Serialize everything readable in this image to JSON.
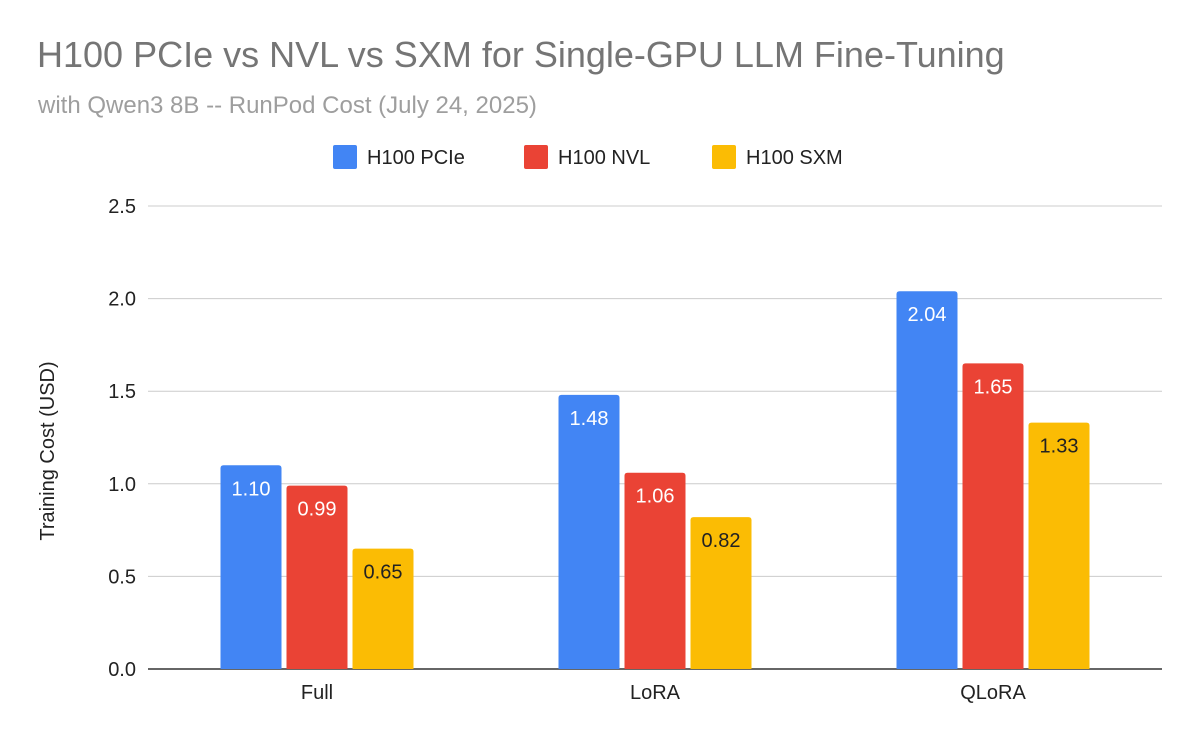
{
  "chart_data": {
    "type": "bar",
    "title": "H100 PCIe vs NVL vs SXM for Single-GPU LLM Fine-Tuning",
    "subtitle": "with Qwen3 8B -- RunPod Cost (July 24, 2025)",
    "xlabel": "",
    "ylabel": "Training Cost (USD)",
    "ylim": [
      0,
      2.5
    ],
    "yticks": [
      "0.0",
      "0.5",
      "1.0",
      "1.5",
      "2.0",
      "2.5"
    ],
    "categories": [
      "Full",
      "LoRA",
      "QLoRA"
    ],
    "series": [
      {
        "name": "H100 PCIe",
        "color": "#4285f4",
        "label_color": "#ffffff",
        "values": [
          1.1,
          1.48,
          2.04
        ],
        "labels": [
          "1.10",
          "1.48",
          "2.04"
        ]
      },
      {
        "name": "H100 NVL",
        "color": "#ea4335",
        "label_color": "#ffffff",
        "values": [
          0.99,
          1.06,
          1.65
        ],
        "labels": [
          "0.99",
          "1.06",
          "1.65"
        ]
      },
      {
        "name": "H100 SXM",
        "color": "#fbbc04",
        "label_color": "#222222",
        "values": [
          0.65,
          0.82,
          1.33
        ],
        "labels": [
          "0.65",
          "0.82",
          "1.33"
        ]
      }
    ],
    "grid": true,
    "legend_position": "top"
  }
}
